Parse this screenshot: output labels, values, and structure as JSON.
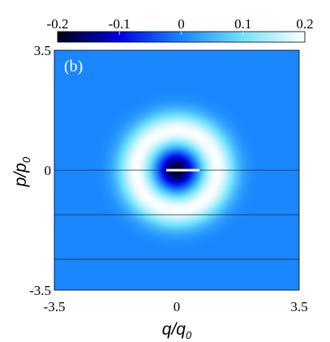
{
  "chart_data": {
    "type": "heatmap",
    "panel_label": "(b)",
    "xlabel": {
      "main": "q",
      "sub": "0",
      "denom": "q"
    },
    "ylabel": {
      "main": "p",
      "sub": "0",
      "denom": "p"
    },
    "xlim": [
      -3.5,
      3.5
    ],
    "ylim": [
      -3.5,
      3.5
    ],
    "x_ticks": [
      {
        "value": -3.5,
        "label": "-3.5"
      },
      {
        "value": 0,
        "label": "0"
      },
      {
        "value": 3.5,
        "label": "3.5"
      }
    ],
    "y_ticks": [
      {
        "value": 3.5,
        "label": "3.5"
      },
      {
        "value": 0,
        "label": "0"
      },
      {
        "value": -3.5,
        "label": "-3.5"
      }
    ],
    "colorbar": {
      "range": [
        -0.2,
        0.2
      ],
      "ticks": [
        {
          "value": -0.2,
          "label": "-0.2"
        },
        {
          "value": -0.1,
          "label": "-0.1"
        },
        {
          "value": 0,
          "label": "0"
        },
        {
          "value": 0.1,
          "label": "0.1"
        },
        {
          "value": 0.2,
          "label": "0.2"
        }
      ],
      "stops": [
        {
          "value": -0.2,
          "color": "#000015"
        },
        {
          "value": -0.1,
          "color": "#0000e6"
        },
        {
          "value": 0,
          "color": "#1a86ff"
        },
        {
          "value": 0.1,
          "color": "#6fe2ff"
        },
        {
          "value": 0.2,
          "color": "#ffffff"
        }
      ]
    },
    "field": {
      "description": "radially symmetric: negative dip at origin, bright positive ring, background near zero",
      "background_value": 0.0,
      "center_value": -0.2,
      "center_radius": 0.55,
      "ring_value": 0.2,
      "ring_radius": 1.15,
      "ring_width": 0.55
    },
    "grid_lines_y": [
      0,
      -1.3,
      -2.6,
      -3.9
    ],
    "center_segment": {
      "x": [
        -0.3,
        0.65
      ],
      "y": 0,
      "color": "#ffffff"
    }
  }
}
